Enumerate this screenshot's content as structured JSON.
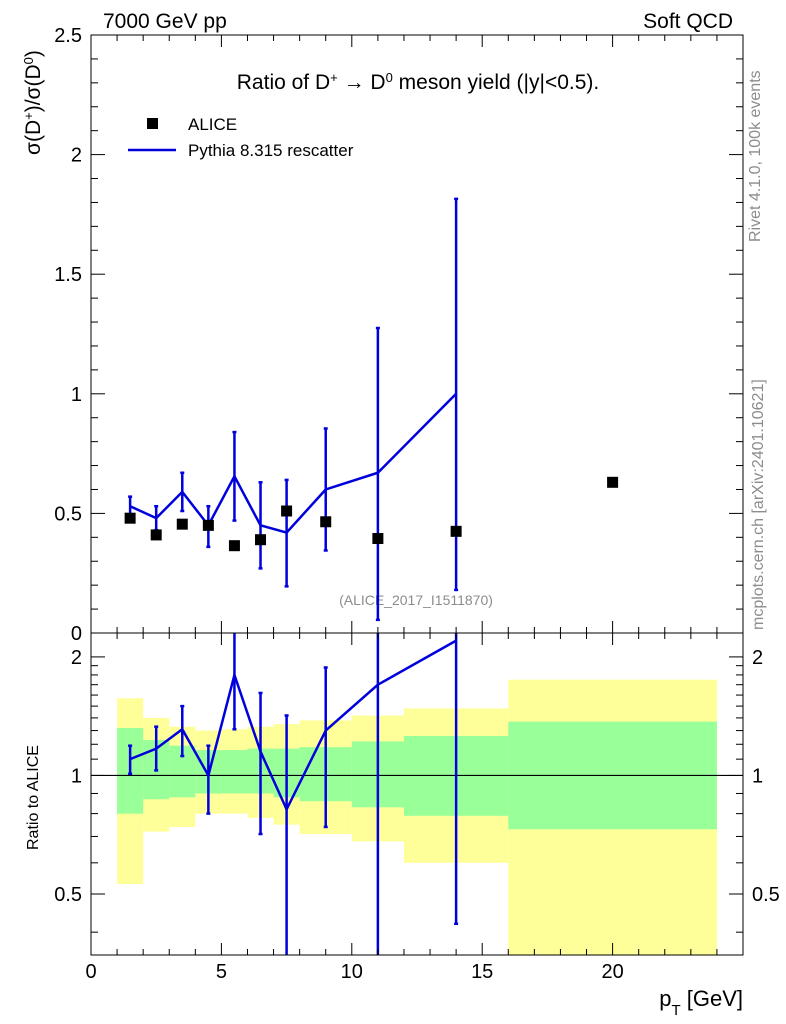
{
  "header": {
    "left": "7000 GeV pp",
    "right": "Soft QCD"
  },
  "side": {
    "rivet": "Rivet 4.1.0,  100k events",
    "mcplots": "mcplots.cern.ch [arXiv:2401.10621]"
  },
  "chart_data": [
    {
      "type": "scatter",
      "title": "Ratio of D⁺ → D⁰ meson yield (|y|<0.5).",
      "title_parts": {
        "pre": "Ratio of D",
        "sup1": "+",
        "arrow": " → D",
        "sup2": "0",
        "post": " meson yield (|y|<0.5)."
      },
      "ylabel": "σ(D⁺)/σ(D⁰)",
      "ylabel_parts": {
        "a": "σ(D",
        "s1": "+",
        "b": ")/σ(D",
        "s2": "0",
        "c": ")"
      },
      "analysis": "(ALICE_2017_I1511870)",
      "xlim": [
        0,
        25
      ],
      "ylim": [
        0,
        2.5
      ],
      "yticks": [
        0.5,
        1,
        1.5,
        2,
        2.5
      ],
      "ytick_labels": [
        "0.5",
        "1",
        "1.5",
        "2",
        "2.5"
      ],
      "bottom_tick_label": "0",
      "legend": {
        "position": "top-left",
        "entries": [
          "ALICE",
          "Pythia 8.315 rescatter"
        ]
      },
      "series": [
        {
          "name": "ALICE",
          "marker": "square",
          "color": "#000000",
          "x": [
            1.5,
            2.5,
            3.5,
            4.5,
            5.5,
            6.5,
            7.5,
            9,
            11,
            14,
            20
          ],
          "y": [
            0.48,
            0.41,
            0.455,
            0.45,
            0.365,
            0.39,
            0.51,
            0.465,
            0.395,
            0.425,
            0.63
          ]
        },
        {
          "name": "Pythia 8.315 rescatter",
          "marker": "line",
          "color": "#0000dd",
          "x": [
            1.5,
            2.5,
            3.5,
            4.5,
            5.5,
            6.5,
            7.5,
            9,
            11,
            14
          ],
          "y": [
            0.53,
            0.48,
            0.59,
            0.45,
            0.655,
            0.45,
            0.42,
            0.6,
            0.67,
            1.0
          ],
          "yerr_low": [
            0.49,
            0.43,
            0.51,
            0.36,
            0.47,
            0.27,
            0.195,
            0.345,
            0.055,
            0.18
          ],
          "yerr_high": [
            0.57,
            0.53,
            0.67,
            0.53,
            0.84,
            0.63,
            0.64,
            0.855,
            1.275,
            1.815
          ]
        }
      ]
    },
    {
      "type": "line",
      "ylabel": "Ratio to ALICE",
      "xlabel": "p_T [GeV]",
      "xlabel_parts": {
        "main": "p",
        "sub": "T",
        "unit": " [GeV]"
      },
      "xlim": [
        0,
        25
      ],
      "ylim": [
        0.35,
        2.3
      ],
      "xticks": [
        0,
        5,
        10,
        15,
        20
      ],
      "xtick_labels": [
        "0",
        "5",
        "10",
        "15",
        "20"
      ],
      "yticks": [
        0.5,
        1,
        2
      ],
      "ytick_labels": [
        "0.5",
        "1",
        "2"
      ],
      "reference_line": 1,
      "bands": [
        {
          "x0": 1.0,
          "x1": 2.0,
          "y1_low": 0.8,
          "y1_high": 1.32,
          "y2_low": 0.53,
          "y2_high": 1.57
        },
        {
          "x0": 2.0,
          "x1": 3.0,
          "y1_low": 0.87,
          "y1_high": 1.23,
          "y2_low": 0.72,
          "y2_high": 1.4
        },
        {
          "x0": 3.0,
          "x1": 4.0,
          "y1_low": 0.88,
          "y1_high": 1.19,
          "y2_low": 0.74,
          "y2_high": 1.33
        },
        {
          "x0": 4.0,
          "x1": 5.0,
          "y1_low": 0.9,
          "y1_high": 1.16,
          "y2_low": 0.8,
          "y2_high": 1.3
        },
        {
          "x0": 5.0,
          "x1": 6.0,
          "y1_low": 0.9,
          "y1_high": 1.16,
          "y2_low": 0.8,
          "y2_high": 1.31
        },
        {
          "x0": 6.0,
          "x1": 7.0,
          "y1_low": 0.9,
          "y1_high": 1.17,
          "y2_low": 0.78,
          "y2_high": 1.33
        },
        {
          "x0": 7.0,
          "x1": 8.0,
          "y1_low": 0.88,
          "y1_high": 1.17,
          "y2_low": 0.75,
          "y2_high": 1.35
        },
        {
          "x0": 8.0,
          "x1": 10.0,
          "y1_low": 0.86,
          "y1_high": 1.18,
          "y2_low": 0.71,
          "y2_high": 1.38
        },
        {
          "x0": 10.0,
          "x1": 12.0,
          "y1_low": 0.83,
          "y1_high": 1.22,
          "y2_low": 0.68,
          "y2_high": 1.42
        },
        {
          "x0": 12.0,
          "x1": 16.0,
          "y1_low": 0.79,
          "y1_high": 1.26,
          "y2_low": 0.6,
          "y2_high": 1.48
        },
        {
          "x0": 16.0,
          "x1": 24.0,
          "y1_low": 0.73,
          "y1_high": 1.37,
          "y2_low": 0.35,
          "y2_high": 1.75
        }
      ],
      "series": [
        {
          "name": "Pythia 8.315 rescatter / ALICE",
          "color": "#0000dd",
          "x": [
            1.5,
            2.5,
            3.5,
            4.5,
            5.5,
            6.5,
            7.5,
            9,
            11,
            14
          ],
          "y": [
            1.1,
            1.17,
            1.31,
            1.0,
            1.8,
            1.15,
            0.82,
            1.3,
            1.7,
            2.2
          ],
          "yerr_low": [
            1.01,
            1.03,
            1.12,
            0.8,
            1.31,
            0.71,
            0.35,
            0.74,
            0.35,
            0.42
          ],
          "yerr_high": [
            1.19,
            1.33,
            1.5,
            1.19,
            2.3,
            1.62,
            1.42,
            1.88,
            2.3,
            2.3
          ]
        }
      ],
      "colors": {
        "inner_band": "#99ff99",
        "outer_band": "#ffff99"
      }
    }
  ]
}
